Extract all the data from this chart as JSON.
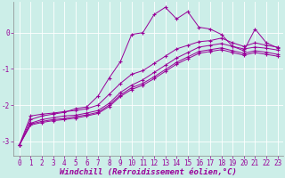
{
  "background_color": "#cceee8",
  "line_color": "#990099",
  "marker": "+",
  "xlabel": "Windchill (Refroidissement éolien,°C)",
  "xlabel_fontsize": 6.5,
  "tick_fontsize": 5.5,
  "xlim": [
    -0.5,
    23.5
  ],
  "ylim": [
    -3.4,
    0.85
  ],
  "yticks": [
    -3,
    -2,
    -1,
    0
  ],
  "xticks": [
    0,
    1,
    2,
    3,
    4,
    5,
    6,
    7,
    8,
    9,
    10,
    11,
    12,
    13,
    14,
    15,
    16,
    17,
    18,
    19,
    20,
    21,
    22,
    23
  ],
  "series": [
    {
      "x": [
        0,
        1,
        2,
        3,
        4,
        5,
        6,
        7,
        8,
        9,
        10,
        11,
        12,
        13,
        14,
        15,
        16,
        17,
        18,
        19,
        20,
        21,
        22,
        23
      ],
      "y": [
        -3.1,
        -2.4,
        -2.3,
        -2.25,
        -2.2,
        -2.1,
        -2.05,
        -1.75,
        -1.25,
        -0.8,
        -0.05,
        0.0,
        0.5,
        0.7,
        0.38,
        0.58,
        0.15,
        0.1,
        -0.05,
        -0.38,
        -0.5,
        0.1,
        -0.28,
        -0.42
      ]
    },
    {
      "x": [
        0,
        1,
        2,
        3,
        4,
        5,
        6,
        7,
        8,
        9,
        10,
        11,
        12,
        13,
        14,
        15,
        16,
        17,
        18,
        19,
        20,
        21,
        22,
        23
      ],
      "y": [
        -3.1,
        -2.5,
        -2.4,
        -2.35,
        -2.3,
        -2.28,
        -2.22,
        -2.15,
        -1.95,
        -1.65,
        -1.45,
        -1.3,
        -1.1,
        -0.9,
        -0.7,
        -0.55,
        -0.4,
        -0.35,
        -0.3,
        -0.38,
        -0.45,
        -0.4,
        -0.43,
        -0.48
      ]
    },
    {
      "x": [
        0,
        1,
        2,
        3,
        4,
        5,
        6,
        7,
        8,
        9,
        10,
        11,
        12,
        13,
        14,
        15,
        16,
        17,
        18,
        19,
        20,
        21,
        22,
        23
      ],
      "y": [
        -3.1,
        -2.52,
        -2.45,
        -2.4,
        -2.37,
        -2.32,
        -2.27,
        -2.2,
        -2.0,
        -1.72,
        -1.52,
        -1.4,
        -1.22,
        -1.02,
        -0.82,
        -0.67,
        -0.52,
        -0.47,
        -0.42,
        -0.5,
        -0.57,
        -0.5,
        -0.54,
        -0.6
      ]
    },
    {
      "x": [
        0,
        1,
        2,
        3,
        4,
        5,
        6,
        7,
        8,
        9,
        10,
        11,
        12,
        13,
        14,
        15,
        16,
        17,
        18,
        19,
        20,
        21,
        22,
        23
      ],
      "y": [
        -3.1,
        -2.55,
        -2.48,
        -2.43,
        -2.4,
        -2.36,
        -2.3,
        -2.23,
        -2.04,
        -1.76,
        -1.57,
        -1.45,
        -1.27,
        -1.07,
        -0.87,
        -0.72,
        -0.57,
        -0.52,
        -0.47,
        -0.55,
        -0.62,
        -0.55,
        -0.6,
        -0.65
      ]
    },
    {
      "x": [
        0,
        1,
        2,
        3,
        4,
        5,
        6,
        7,
        8,
        9,
        10,
        11,
        12,
        13,
        14,
        15,
        16,
        17,
        18,
        19,
        20,
        21,
        22,
        23
      ],
      "y": [
        -3.1,
        -2.3,
        -2.25,
        -2.22,
        -2.18,
        -2.15,
        -2.1,
        -2.0,
        -1.7,
        -1.4,
        -1.15,
        -1.05,
        -0.85,
        -0.65,
        -0.45,
        -0.35,
        -0.25,
        -0.22,
        -0.15,
        -0.28,
        -0.38,
        -0.28,
        -0.35,
        -0.4
      ]
    }
  ]
}
